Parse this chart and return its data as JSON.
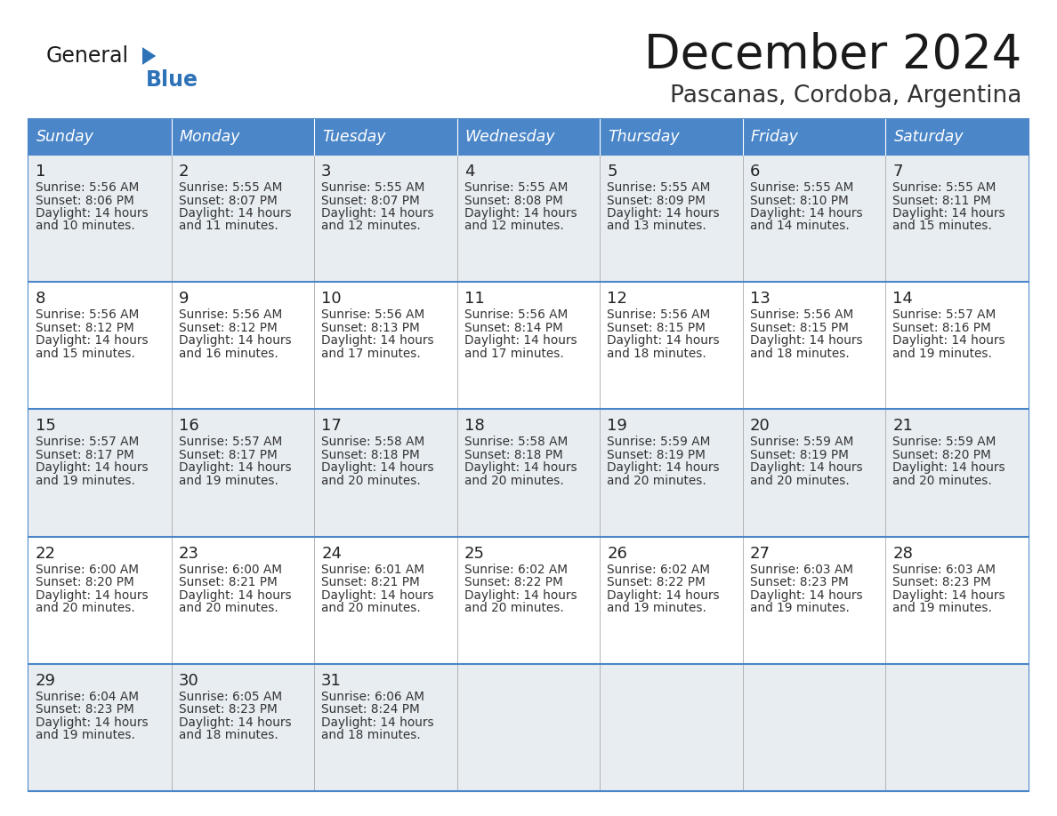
{
  "title": "December 2024",
  "subtitle": "Pascanas, Cordoba, Argentina",
  "header_color": "#4a86c8",
  "header_text_color": "#ffffff",
  "row_bg_odd": "#e8edf2",
  "row_bg_even": "#ffffff",
  "border_color": "#4a86c8",
  "cell_border_color": "#c0c0c0",
  "day_num_color": "#222222",
  "cell_text_color": "#333333",
  "days_of_week": [
    "Sunday",
    "Monday",
    "Tuesday",
    "Wednesday",
    "Thursday",
    "Friday",
    "Saturday"
  ],
  "logo_color_general": "#1a1a1a",
  "logo_color_blue": "#2e72b8",
  "logo_triangle_color": "#2e72b8",
  "title_color": "#1a1a1a",
  "subtitle_color": "#333333",
  "weeks": [
    [
      {
        "day": 1,
        "sunrise": "5:56 AM",
        "sunset": "8:06 PM",
        "daylight_h": "14 hours",
        "daylight_m": "and 10 minutes."
      },
      {
        "day": 2,
        "sunrise": "5:55 AM",
        "sunset": "8:07 PM",
        "daylight_h": "14 hours",
        "daylight_m": "and 11 minutes."
      },
      {
        "day": 3,
        "sunrise": "5:55 AM",
        "sunset": "8:07 PM",
        "daylight_h": "14 hours",
        "daylight_m": "and 12 minutes."
      },
      {
        "day": 4,
        "sunrise": "5:55 AM",
        "sunset": "8:08 PM",
        "daylight_h": "14 hours",
        "daylight_m": "and 12 minutes."
      },
      {
        "day": 5,
        "sunrise": "5:55 AM",
        "sunset": "8:09 PM",
        "daylight_h": "14 hours",
        "daylight_m": "and 13 minutes."
      },
      {
        "day": 6,
        "sunrise": "5:55 AM",
        "sunset": "8:10 PM",
        "daylight_h": "14 hours",
        "daylight_m": "and 14 minutes."
      },
      {
        "day": 7,
        "sunrise": "5:55 AM",
        "sunset": "8:11 PM",
        "daylight_h": "14 hours",
        "daylight_m": "and 15 minutes."
      }
    ],
    [
      {
        "day": 8,
        "sunrise": "5:56 AM",
        "sunset": "8:12 PM",
        "daylight_h": "14 hours",
        "daylight_m": "and 15 minutes."
      },
      {
        "day": 9,
        "sunrise": "5:56 AM",
        "sunset": "8:12 PM",
        "daylight_h": "14 hours",
        "daylight_m": "and 16 minutes."
      },
      {
        "day": 10,
        "sunrise": "5:56 AM",
        "sunset": "8:13 PM",
        "daylight_h": "14 hours",
        "daylight_m": "and 17 minutes."
      },
      {
        "day": 11,
        "sunrise": "5:56 AM",
        "sunset": "8:14 PM",
        "daylight_h": "14 hours",
        "daylight_m": "and 17 minutes."
      },
      {
        "day": 12,
        "sunrise": "5:56 AM",
        "sunset": "8:15 PM",
        "daylight_h": "14 hours",
        "daylight_m": "and 18 minutes."
      },
      {
        "day": 13,
        "sunrise": "5:56 AM",
        "sunset": "8:15 PM",
        "daylight_h": "14 hours",
        "daylight_m": "and 18 minutes."
      },
      {
        "day": 14,
        "sunrise": "5:57 AM",
        "sunset": "8:16 PM",
        "daylight_h": "14 hours",
        "daylight_m": "and 19 minutes."
      }
    ],
    [
      {
        "day": 15,
        "sunrise": "5:57 AM",
        "sunset": "8:17 PM",
        "daylight_h": "14 hours",
        "daylight_m": "and 19 minutes."
      },
      {
        "day": 16,
        "sunrise": "5:57 AM",
        "sunset": "8:17 PM",
        "daylight_h": "14 hours",
        "daylight_m": "and 19 minutes."
      },
      {
        "day": 17,
        "sunrise": "5:58 AM",
        "sunset": "8:18 PM",
        "daylight_h": "14 hours",
        "daylight_m": "and 20 minutes."
      },
      {
        "day": 18,
        "sunrise": "5:58 AM",
        "sunset": "8:18 PM",
        "daylight_h": "14 hours",
        "daylight_m": "and 20 minutes."
      },
      {
        "day": 19,
        "sunrise": "5:59 AM",
        "sunset": "8:19 PM",
        "daylight_h": "14 hours",
        "daylight_m": "and 20 minutes."
      },
      {
        "day": 20,
        "sunrise": "5:59 AM",
        "sunset": "8:19 PM",
        "daylight_h": "14 hours",
        "daylight_m": "and 20 minutes."
      },
      {
        "day": 21,
        "sunrise": "5:59 AM",
        "sunset": "8:20 PM",
        "daylight_h": "14 hours",
        "daylight_m": "and 20 minutes."
      }
    ],
    [
      {
        "day": 22,
        "sunrise": "6:00 AM",
        "sunset": "8:20 PM",
        "daylight_h": "14 hours",
        "daylight_m": "and 20 minutes."
      },
      {
        "day": 23,
        "sunrise": "6:00 AM",
        "sunset": "8:21 PM",
        "daylight_h": "14 hours",
        "daylight_m": "and 20 minutes."
      },
      {
        "day": 24,
        "sunrise": "6:01 AM",
        "sunset": "8:21 PM",
        "daylight_h": "14 hours",
        "daylight_m": "and 20 minutes."
      },
      {
        "day": 25,
        "sunrise": "6:02 AM",
        "sunset": "8:22 PM",
        "daylight_h": "14 hours",
        "daylight_m": "and 20 minutes."
      },
      {
        "day": 26,
        "sunrise": "6:02 AM",
        "sunset": "8:22 PM",
        "daylight_h": "14 hours",
        "daylight_m": "and 19 minutes."
      },
      {
        "day": 27,
        "sunrise": "6:03 AM",
        "sunset": "8:23 PM",
        "daylight_h": "14 hours",
        "daylight_m": "and 19 minutes."
      },
      {
        "day": 28,
        "sunrise": "6:03 AM",
        "sunset": "8:23 PM",
        "daylight_h": "14 hours",
        "daylight_m": "and 19 minutes."
      }
    ],
    [
      {
        "day": 29,
        "sunrise": "6:04 AM",
        "sunset": "8:23 PM",
        "daylight_h": "14 hours",
        "daylight_m": "and 19 minutes."
      },
      {
        "day": 30,
        "sunrise": "6:05 AM",
        "sunset": "8:23 PM",
        "daylight_h": "14 hours",
        "daylight_m": "and 18 minutes."
      },
      {
        "day": 31,
        "sunrise": "6:06 AM",
        "sunset": "8:24 PM",
        "daylight_h": "14 hours",
        "daylight_m": "and 18 minutes."
      },
      null,
      null,
      null,
      null
    ]
  ]
}
